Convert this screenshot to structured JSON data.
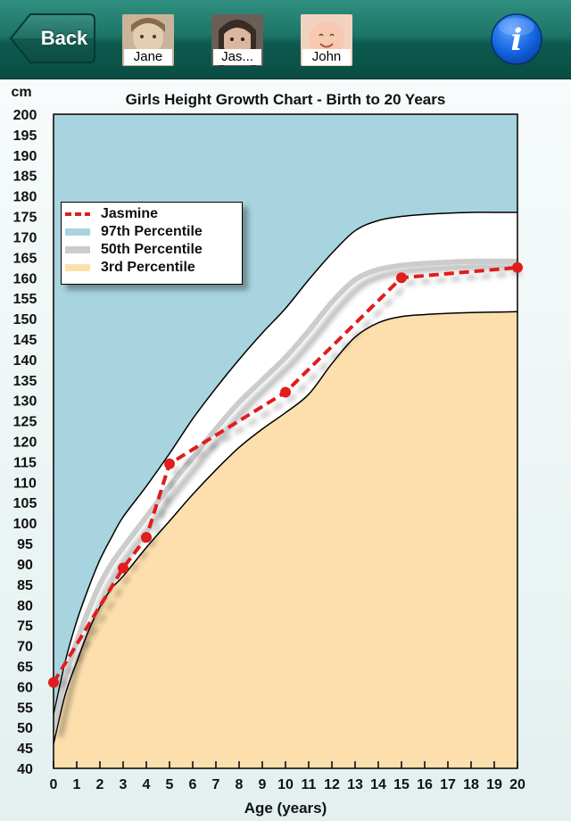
{
  "nav": {
    "back_label": "Back",
    "children": [
      {
        "name": "Jane"
      },
      {
        "name": "Jas..."
      },
      {
        "name": "John"
      }
    ],
    "info_icon": "info-icon",
    "info_glyph": "i"
  },
  "colors": {
    "top97": "#a8d4e0",
    "band": "#ffffff",
    "bottom3": "#fddfad",
    "median": "#cccccc",
    "child_series": "#e11d1d"
  },
  "chart_data": {
    "type": "line",
    "title": "Girls Height Growth Chart - Birth to 20 Years",
    "xlabel": "Age (years)",
    "ylabel": "cm",
    "xlim": [
      0,
      20
    ],
    "ylim": [
      40,
      200
    ],
    "x_ticks": [
      0,
      1,
      2,
      3,
      4,
      5,
      6,
      7,
      8,
      9,
      10,
      11,
      12,
      13,
      14,
      15,
      16,
      17,
      18,
      19,
      20
    ],
    "y_ticks": [
      40,
      45,
      50,
      55,
      60,
      65,
      70,
      75,
      80,
      85,
      90,
      95,
      100,
      105,
      110,
      115,
      120,
      125,
      130,
      135,
      140,
      145,
      150,
      155,
      160,
      165,
      170,
      175,
      180,
      185,
      190,
      195,
      200
    ],
    "legend": [
      {
        "label": "Jasmine",
        "style": "dashed-line"
      },
      {
        "label": "97th Percentile",
        "style": "fill"
      },
      {
        "label": "50th Percentile",
        "style": "line"
      },
      {
        "label": "3rd Percentile",
        "style": "fill"
      }
    ],
    "series": [
      {
        "name": "Jasmine",
        "x": [
          0,
          3,
          4,
          5,
          10,
          15,
          20
        ],
        "y": [
          61,
          89,
          96.5,
          114.5,
          132,
          160,
          162.5
        ]
      },
      {
        "name": "97th Percentile",
        "x": [
          0,
          0.5,
          1,
          1.5,
          2,
          2.5,
          3,
          4,
          5,
          6,
          7,
          8,
          9,
          10,
          11,
          12,
          13,
          14,
          15,
          16,
          17,
          18,
          19,
          20
        ],
        "y": [
          53,
          66,
          76,
          84,
          91,
          96.5,
          101.5,
          109,
          117,
          125.5,
          133,
          140,
          146.5,
          152.5,
          159.5,
          166,
          171.5,
          174,
          175,
          175.5,
          175.8,
          176,
          176,
          176
        ]
      },
      {
        "name": "50th Percentile",
        "x": [
          0,
          0.5,
          1,
          1.5,
          2,
          2.5,
          3,
          4,
          5,
          6,
          7,
          8,
          9,
          10,
          11,
          12,
          13,
          14,
          15,
          16,
          17,
          18,
          19,
          20
        ],
        "y": [
          49.5,
          62,
          71,
          78.5,
          85,
          90,
          94,
          101.5,
          109,
          116,
          123,
          129.5,
          135,
          140.5,
          147,
          154,
          159.5,
          162,
          163,
          163.5,
          163.8,
          164,
          164,
          164
        ]
      },
      {
        "name": "3rd Percentile",
        "x": [
          0,
          0.5,
          1,
          1.5,
          2,
          2.5,
          3,
          4,
          5,
          6,
          7,
          8,
          9,
          10,
          11,
          12,
          13,
          14,
          15,
          16,
          17,
          18,
          19,
          20
        ],
        "y": [
          46,
          58,
          66,
          73.5,
          79.5,
          84,
          87,
          94,
          100.5,
          107,
          113,
          118.5,
          123,
          127,
          131.5,
          139,
          145.5,
          149,
          150.5,
          151,
          151.3,
          151.5,
          151.6,
          151.7
        ]
      }
    ],
    "grid": false,
    "legend_position": "top-left"
  }
}
